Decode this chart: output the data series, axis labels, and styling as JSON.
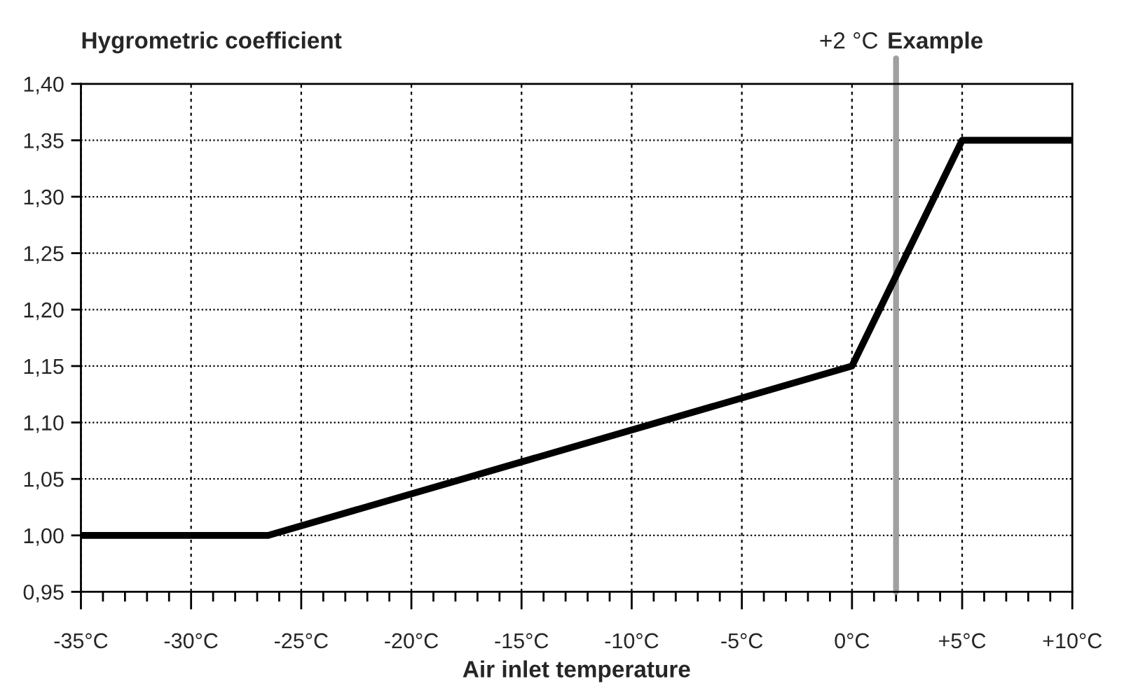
{
  "chart_data": {
    "type": "line",
    "ylabel": "Hygrometric coefficient",
    "xlabel": "Air inlet temperature",
    "x": [
      -35,
      -26.5,
      0,
      5,
      10
    ],
    "series": [
      {
        "color": "#000000",
        "values": [
          1.0,
          1.0,
          1.15,
          1.35,
          1.35
        ]
      }
    ],
    "xlim": [
      -35,
      10
    ],
    "xticks": [
      {
        "value": -35,
        "label": "-35°C"
      },
      {
        "value": -34,
        "label": null
      },
      {
        "value": -33,
        "label": null
      },
      {
        "value": -32,
        "label": null
      },
      {
        "value": -31,
        "label": null
      },
      {
        "value": -30,
        "label": "-30°C"
      },
      {
        "value": -29,
        "label": null
      },
      {
        "value": -28,
        "label": null
      },
      {
        "value": -27,
        "label": null
      },
      {
        "value": -26,
        "label": null
      },
      {
        "value": -25,
        "label": "-25°C"
      },
      {
        "value": -24,
        "label": null
      },
      {
        "value": -23,
        "label": null
      },
      {
        "value": -22,
        "label": null
      },
      {
        "value": -21,
        "label": null
      },
      {
        "value": -20,
        "label": "-20°C"
      },
      {
        "value": -19,
        "label": null
      },
      {
        "value": -18,
        "label": null
      },
      {
        "value": -17,
        "label": null
      },
      {
        "value": -16,
        "label": null
      },
      {
        "value": -15,
        "label": "-15°C"
      },
      {
        "value": -14,
        "label": null
      },
      {
        "value": -13,
        "label": null
      },
      {
        "value": -12,
        "label": null
      },
      {
        "value": -11,
        "label": null
      },
      {
        "value": -10,
        "label": "-10°C"
      },
      {
        "value": -9,
        "label": null
      },
      {
        "value": -8,
        "label": null
      },
      {
        "value": -7,
        "label": null
      },
      {
        "value": -6,
        "label": null
      },
      {
        "value": -5,
        "label": "-5°C"
      },
      {
        "value": -4,
        "label": null
      },
      {
        "value": -3,
        "label": null
      },
      {
        "value": -2,
        "label": null
      },
      {
        "value": -1,
        "label": null
      },
      {
        "value": 0,
        "label": "0°C"
      },
      {
        "value": 1,
        "label": null
      },
      {
        "value": 2,
        "label": null
      },
      {
        "value": 3,
        "label": null
      },
      {
        "value": 4,
        "label": null
      },
      {
        "value": 5,
        "label": "+5°C"
      },
      {
        "value": 6,
        "label": null
      },
      {
        "value": 7,
        "label": null
      },
      {
        "value": 8,
        "label": null
      },
      {
        "value": 9,
        "label": null
      },
      {
        "value": 10,
        "label": "+10°C"
      }
    ],
    "ylim": [
      0.95,
      1.4
    ],
    "yticks": [
      {
        "value": 0.95,
        "label": "0,95"
      },
      {
        "value": 1.0,
        "label": "1,00"
      },
      {
        "value": 1.05,
        "label": "1,05"
      },
      {
        "value": 1.1,
        "label": "1,10"
      },
      {
        "value": 1.15,
        "label": "1,15"
      },
      {
        "value": 1.2,
        "label": "1,20"
      },
      {
        "value": 1.25,
        "label": "1,25"
      },
      {
        "value": 1.3,
        "label": "1,30"
      },
      {
        "value": 1.35,
        "label": "1,35"
      },
      {
        "value": 1.4,
        "label": "1,40"
      }
    ],
    "grid": true,
    "line_style": "solid",
    "ref_lines": [
      {
        "axis": "x",
        "value": 2,
        "label": "+2 °C",
        "color": "#a0a0a0"
      }
    ],
    "annotations": [
      "Example"
    ]
  }
}
